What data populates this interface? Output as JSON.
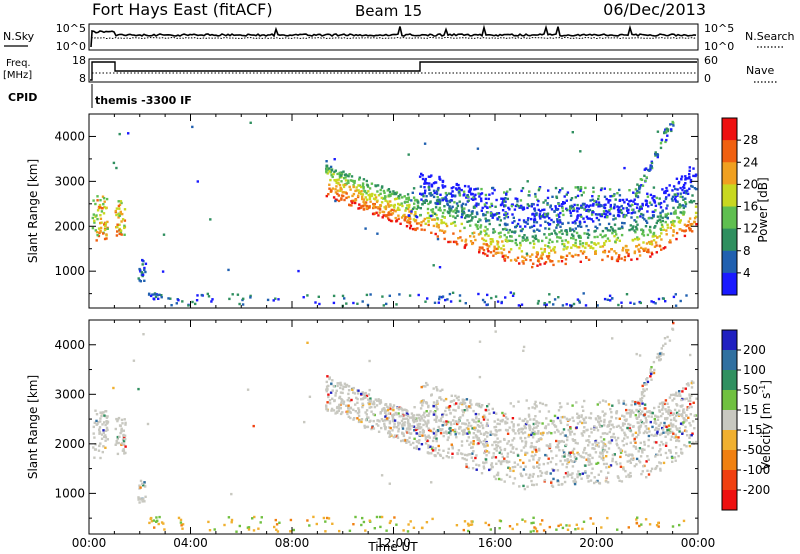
{
  "header": {
    "title": "Fort Hays East (fitACF)",
    "beam": "Beam 15",
    "date": "06/Dec/2013"
  },
  "noise_panel": {
    "left_label": "N.Sky",
    "right_label": "N.Search",
    "left_ticks": [
      "10^5",
      "10^0"
    ],
    "right_ticks": [
      "10^5",
      "10^0"
    ]
  },
  "freq_panel": {
    "left_label_1": "Freq.",
    "left_label_2": "[MHz]",
    "left_ticks": [
      "18",
      "8"
    ],
    "right_label": "Nave",
    "right_ticks": [
      "60",
      "0"
    ]
  },
  "cpid_panel": {
    "label": "CPID",
    "value": "themis -3300 IF"
  },
  "chart_data": [
    {
      "type": "heatmap",
      "name": "power",
      "ylabel": "Slant Range [km]",
      "xlabel": "",
      "x_ticks": [
        "00:00",
        "04:00",
        "08:00",
        "12:00",
        "16:00",
        "20:00",
        "00:00"
      ],
      "y_ticks": [
        "1000",
        "2000",
        "3000",
        "4000"
      ],
      "xlim": [
        0,
        24
      ],
      "ylim": [
        180,
        4500
      ],
      "colorbar": {
        "label": "Power [dB]",
        "ticks": [
          "4",
          "8",
          "12",
          "16",
          "20",
          "24",
          "28"
        ],
        "colors": [
          "#1a1aff",
          "#2060b0",
          "#2f8f5f",
          "#5fbf50",
          "#c8d820",
          "#f0a020",
          "#f06010",
          "#ee1010"
        ]
      }
    },
    {
      "type": "heatmap",
      "name": "velocity",
      "ylabel": "Slant Range [km]",
      "xlabel": "Time UT",
      "x_ticks": [
        "00:00",
        "04:00",
        "08:00",
        "12:00",
        "16:00",
        "20:00",
        "00:00"
      ],
      "y_ticks": [
        "1000",
        "2000",
        "3000",
        "4000"
      ],
      "xlim": [
        0,
        24
      ],
      "ylim": [
        180,
        4500
      ],
      "colorbar": {
        "label": "Velocity [m s",
        "label_sup": "-1",
        "label_end": "]",
        "ticks": [
          "200",
          "100",
          "50",
          "15",
          "-15",
          "-50",
          "-100",
          "-200"
        ],
        "colors": [
          "#2020c0",
          "#3070a0",
          "#309060",
          "#70c040",
          "#c8c8c0",
          "#f0b030",
          "#f08010",
          "#f04010",
          "#ee1010"
        ]
      }
    }
  ]
}
